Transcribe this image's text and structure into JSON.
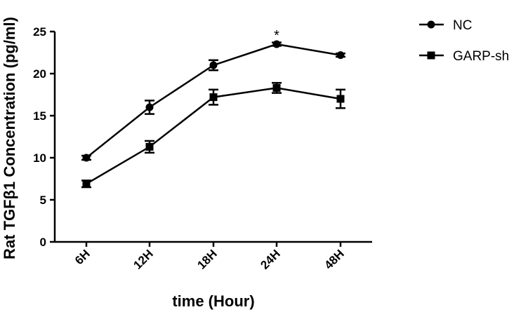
{
  "chart_data": {
    "type": "line",
    "categories": [
      "6H",
      "12H",
      "18H",
      "24H",
      "48H"
    ],
    "series": [
      {
        "name": "NC",
        "marker": "circle",
        "values": [
          10.0,
          16.0,
          21.0,
          23.5,
          22.2
        ],
        "errors": [
          0.25,
          0.8,
          0.6,
          0.2,
          0.2
        ]
      },
      {
        "name": "GARP-sh",
        "marker": "square",
        "values": [
          6.9,
          11.3,
          17.2,
          18.3,
          17.0
        ],
        "errors": [
          0.4,
          0.7,
          0.9,
          0.6,
          1.1
        ]
      }
    ],
    "xlabel": "time (Hour)",
    "ylabel": "Rat TGFβ1 Concentration (pg/ml)",
    "ylim": [
      0,
      25
    ],
    "yticks": [
      "0",
      "5",
      "10",
      "15",
      "20",
      "25"
    ],
    "annotations": [
      {
        "category": "24H",
        "series": "NC",
        "text": "*"
      }
    ],
    "legend": "top-right",
    "grid": false,
    "color": "#000000"
  }
}
